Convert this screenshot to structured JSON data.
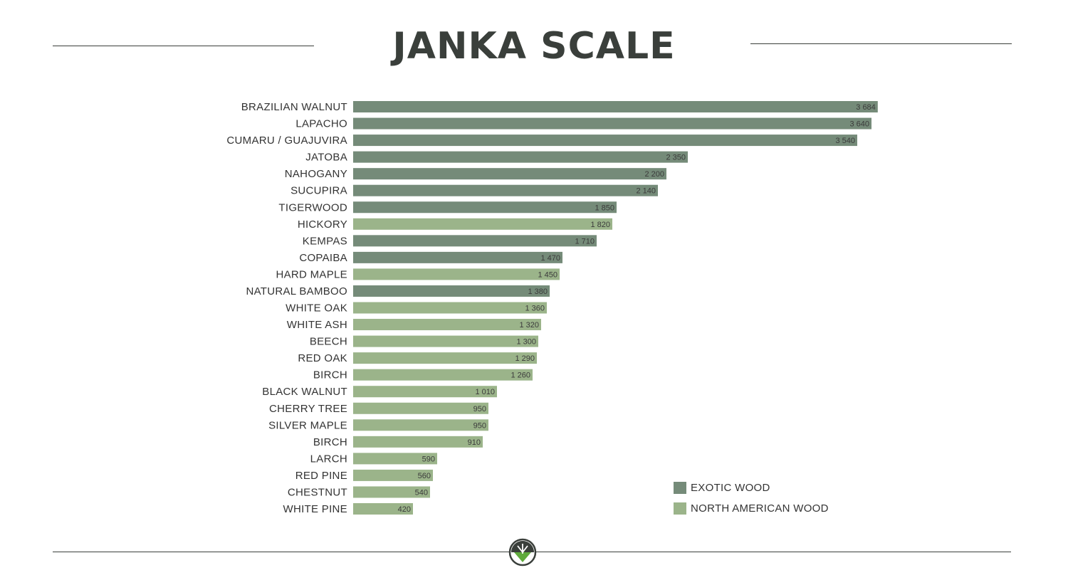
{
  "title": "JANKA SCALE",
  "colors": {
    "exotic": "#758b79",
    "north_american": "#9bb48a",
    "rule": "#3a3f3b",
    "logo_dark": "#3a3f3b",
    "logo_green": "#5faa3c"
  },
  "legend": {
    "exotic": "EXOTIC WOOD",
    "north_american": "NORTH AMERICAN WOOD"
  },
  "chart_data": {
    "type": "bar",
    "orientation": "horizontal",
    "title": "JANKA SCALE",
    "xlim": [
      0,
      4000
    ],
    "grid": false,
    "legend_position": "bottom-right",
    "categories": [
      "BRAZILIAN WALNUT",
      "LAPACHO",
      "CUMARU / GUAJUVIRA",
      "JATOBA",
      "NAHOGANY",
      "SUCUPIRA",
      "TIGERWOOD",
      "HICKORY",
      "KEMPAS",
      "COPAIBA",
      "HARD MAPLE",
      "NATURAL BAMBOO",
      "WHITE OAK",
      "WHITE ASH",
      "BEECH",
      "RED OAK",
      "BIRCH",
      "BLACK WALNUT",
      "CHERRY TREE",
      "SILVER MAPLE",
      "BIRCH",
      "LARCH",
      "RED PINE",
      "CHESTNUT",
      "WHITE PINE"
    ],
    "values": [
      3684,
      3640,
      3540,
      2350,
      2200,
      2140,
      1850,
      1820,
      1710,
      1470,
      1450,
      1380,
      1360,
      1320,
      1300,
      1290,
      1260,
      1010,
      950,
      950,
      910,
      590,
      560,
      540,
      420
    ],
    "value_labels": [
      "3 684",
      "3 640",
      "3 540",
      "2 350",
      "2 200",
      "2 140",
      "1 850",
      "1 820",
      "1 710",
      "1 470",
      "1 450",
      "1 380",
      "1 360",
      "1 320",
      "1 300",
      "1 290",
      "1 260",
      "1 010",
      "950",
      "950",
      "910",
      "590",
      "560",
      "540",
      "420"
    ],
    "groups": [
      "exotic",
      "exotic",
      "exotic",
      "exotic",
      "exotic",
      "exotic",
      "exotic",
      "north_american",
      "exotic",
      "exotic",
      "north_american",
      "exotic",
      "north_american",
      "north_american",
      "north_american",
      "north_american",
      "north_american",
      "north_american",
      "north_american",
      "north_american",
      "north_american",
      "north_american",
      "north_american",
      "north_american",
      "north_american"
    ],
    "series": [
      {
        "name": "EXOTIC WOOD",
        "group": "exotic"
      },
      {
        "name": "NORTH AMERICAN WOOD",
        "group": "north_american"
      }
    ]
  }
}
